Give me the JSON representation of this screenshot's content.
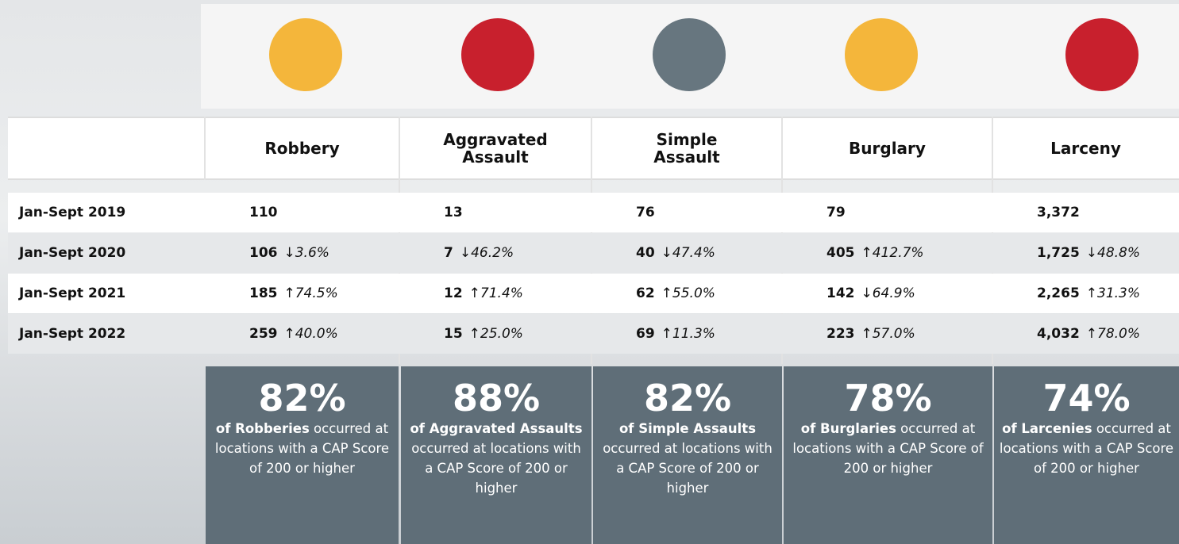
{
  "table": {
    "columns": [
      "Robbery",
      "Aggravated Assault",
      "Simple Assault",
      "Burglary",
      "Larceny"
    ],
    "rows": [
      {
        "label": "Jan-Sept 2019",
        "cells": [
          {
            "value": "110"
          },
          {
            "value": "13"
          },
          {
            "value": "76"
          },
          {
            "value": "79"
          },
          {
            "value": "3,372"
          }
        ]
      },
      {
        "label": "Jan-Sept 2020",
        "cells": [
          {
            "value": "106",
            "change": "↓3.6%"
          },
          {
            "value": "7",
            "change": "↓46.2%"
          },
          {
            "value": "40",
            "change": "↓47.4%"
          },
          {
            "value": "405",
            "change": "↑412.7%"
          },
          {
            "value": "1,725",
            "change": "↓48.8%"
          }
        ]
      },
      {
        "label": "Jan-Sept 2021",
        "cells": [
          {
            "value": "185",
            "change": "↑74.5%"
          },
          {
            "value": "12",
            "change": "↑71.4%"
          },
          {
            "value": "62",
            "change": "↑55.0%"
          },
          {
            "value": "142",
            "change": "↓64.9%"
          },
          {
            "value": "2,265",
            "change": "↑31.3%"
          }
        ]
      },
      {
        "label": "Jan-Sept 2022",
        "cells": [
          {
            "value": "259",
            "change": "↑40.0%"
          },
          {
            "value": "15",
            "change": "↑25.0%"
          },
          {
            "value": "69",
            "change": "↑11.3%"
          },
          {
            "value": "223",
            "change": "↑57.0%"
          },
          {
            "value": "4,032",
            "change": "↑78.0%"
          }
        ]
      }
    ]
  },
  "stats": [
    {
      "percent": "82%",
      "bold": "of Robberies",
      "text": "occurred at locations with a CAP Score of 200 or higher"
    },
    {
      "percent": "88%",
      "bold": "of Aggravated Assaults",
      "text": "occurred at locations with a CAP Score of 200 or higher"
    },
    {
      "percent": "82%",
      "bold": "of Simple Assaults",
      "text": "occurred at locations with a CAP Score of 200 or higher"
    },
    {
      "percent": "78%",
      "bold": "of Burglaries",
      "text": "occurred at locations with a CAP Score of 200 or higher"
    },
    {
      "percent": "74%",
      "bold": "of Larcenies",
      "text": "occurred at locations with a CAP Score of 200 or higher"
    }
  ]
}
